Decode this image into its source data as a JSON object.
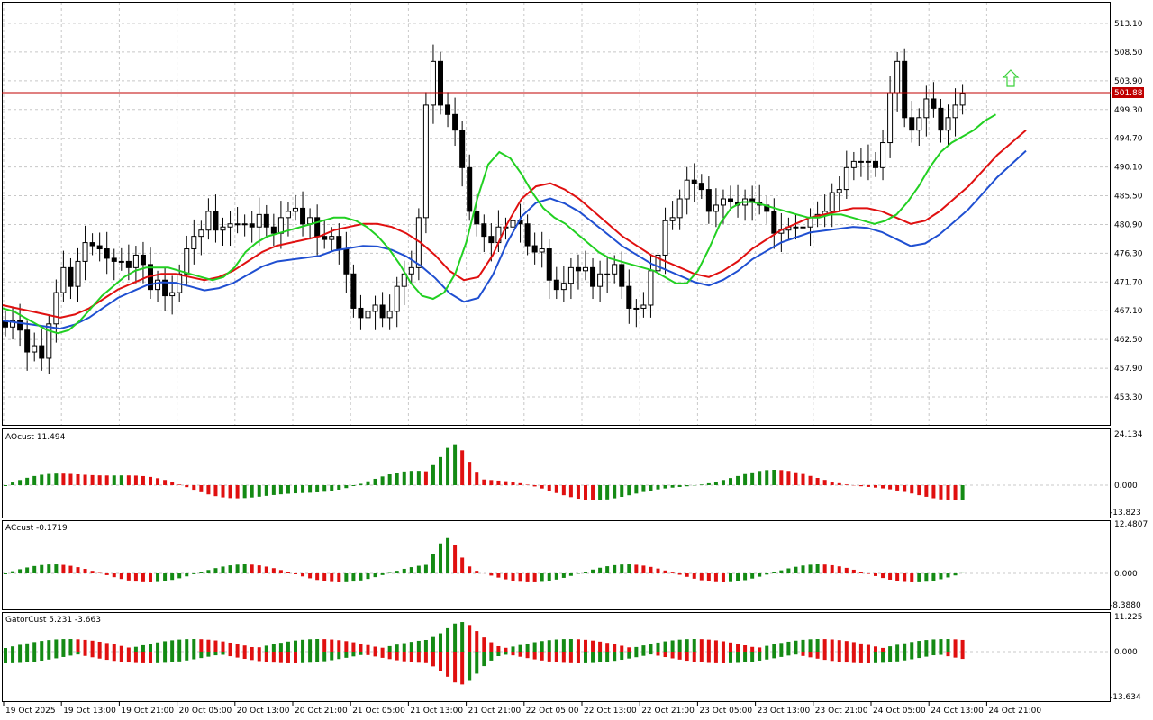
{
  "chart_data": {
    "type": "candlestick",
    "symbol_price_badge": "501.88",
    "price_axis": {
      "ticks": [
        "513.10",
        "508.50",
        "503.90",
        "499.30",
        "494.70",
        "490.10",
        "485.50",
        "480.90",
        "476.30",
        "471.70",
        "467.10",
        "462.50",
        "457.90",
        "453.30"
      ],
      "range": [
        449.5,
        516.0
      ]
    },
    "time_axis": [
      "19 Oct 2025",
      "19 Oct 13:00",
      "19 Oct 21:00",
      "20 Oct 05:00",
      "20 Oct 13:00",
      "20 Oct 21:00",
      "21 Oct 05:00",
      "21 Oct 13:00",
      "21 Oct 21:00",
      "22 Oct 05:00",
      "22 Oct 13:00",
      "22 Oct 21:00",
      "23 Oct 05:00",
      "23 Oct 13:00",
      "23 Oct 21:00",
      "24 Oct 05:00",
      "24 Oct 13:00",
      "24 Oct 21:00"
    ],
    "candles_close": [
      464.5,
      465.5,
      464.0,
      460.5,
      461.5,
      459.5,
      465.0,
      470.0,
      474.0,
      471.0,
      475.0,
      478.0,
      477.5,
      477.0,
      475.5,
      475.0,
      475.0,
      474.0,
      476.0,
      474.5,
      470.5,
      472.0,
      469.5,
      470.0,
      473.0,
      477.0,
      479.0,
      480.0,
      483.0,
      480.0,
      480.5,
      481.0,
      481.0,
      481.0,
      480.5,
      482.5,
      480.5,
      479.5,
      482.0,
      483.0,
      483.5,
      481.0,
      482.0,
      479.0,
      478.5,
      479.0,
      477.0,
      473.0,
      467.5,
      466.0,
      467.0,
      468.0,
      466.0,
      467.0,
      471.0,
      473.0,
      474.0,
      482.0,
      500.0,
      507.0,
      500.0,
      498.5,
      496.0,
      490.0,
      483.0,
      481.0,
      479.0,
      478.0,
      480.5,
      480.5,
      481.5,
      481.0,
      477.5,
      476.5,
      477.0,
      472.0,
      470.5,
      471.5,
      474.0,
      473.5,
      474.0,
      471.0,
      473.0,
      473.0,
      474.5,
      471.0,
      467.5,
      467.5,
      468.0,
      473.5,
      476.0,
      481.5,
      482.0,
      485.0,
      488.0,
      487.5,
      486.5,
      483.0,
      484.0,
      485.0,
      484.5,
      484.0,
      485.0,
      484.5,
      484.0,
      483.0,
      479.5,
      480.0,
      480.5,
      480.5,
      480.5,
      482.0,
      482.5,
      483.0,
      486.0,
      486.5,
      490.0,
      491.0,
      491.0,
      491.0,
      490.0,
      494.0,
      502.0,
      507.0,
      498.0,
      496.0,
      498.0,
      501.0,
      499.5,
      496.0,
      498.0,
      500.0,
      501.88
    ],
    "ma_green": [
      467.5,
      467.0,
      466.0,
      465.0,
      464.0,
      463.5,
      464.0,
      465.5,
      467.5,
      469.5,
      471.0,
      472.5,
      473.5,
      474.0,
      474.0,
      474.0,
      473.5,
      473.0,
      472.5,
      472.0,
      472.5,
      474.0,
      476.5,
      478.0,
      479.0,
      479.5,
      480.0,
      480.5,
      481.0,
      481.5,
      482.0,
      482.0,
      481.5,
      480.5,
      479.0,
      477.0,
      474.5,
      471.5,
      469.5,
      469.0,
      470.0,
      473.0,
      478.0,
      485.0,
      490.5,
      492.5,
      491.5,
      489.0,
      486.0,
      483.5,
      482.0,
      481.0,
      479.5,
      478.0,
      476.5,
      475.5,
      475.0,
      474.5,
      474.0,
      473.5,
      472.5,
      471.5,
      471.5,
      473.5,
      477.0,
      481.0,
      483.5,
      484.5,
      484.5,
      484.0,
      483.5,
      483.0,
      482.5,
      482.0,
      482.0,
      482.5,
      482.5,
      482.0,
      481.5,
      481.0,
      481.5,
      482.5,
      484.5,
      487.0,
      490.0,
      492.5,
      494.0,
      495.0,
      496.0,
      497.5,
      498.5
    ],
    "ma_red": [
      468.0,
      467.5,
      467.0,
      466.5,
      466.0,
      466.5,
      467.5,
      469.0,
      470.5,
      471.5,
      472.5,
      473.0,
      473.0,
      472.5,
      472.0,
      472.5,
      473.5,
      475.0,
      476.5,
      477.5,
      478.0,
      478.5,
      479.0,
      480.0,
      480.5,
      481.0,
      481.0,
      480.5,
      479.5,
      478.0,
      476.0,
      473.5,
      472.0,
      472.5,
      476.0,
      481.0,
      485.0,
      487.0,
      487.5,
      486.5,
      485.0,
      483.0,
      481.0,
      479.0,
      477.5,
      476.0,
      475.0,
      474.0,
      473.0,
      472.5,
      473.5,
      475.0,
      477.0,
      478.5,
      480.0,
      481.0,
      482.0,
      482.5,
      483.0,
      483.5,
      483.5,
      483.0,
      482.0,
      481.0,
      481.5,
      483.0,
      485.0,
      487.0,
      489.5,
      492.0,
      494.0,
      496.0
    ]
  },
  "indicators": [
    {
      "name": "AOcust 11.494",
      "ticks": [
        "24.134",
        "0.000",
        "-13.823"
      ]
    },
    {
      "name": "ACcust -0.1719",
      "ticks": [
        "12.4807",
        "0.000",
        "-8.3880"
      ]
    },
    {
      "name": "GatorCust 5.231 -3.663",
      "ticks": [
        "11.225",
        "0.000",
        "-13.634"
      ]
    }
  ]
}
